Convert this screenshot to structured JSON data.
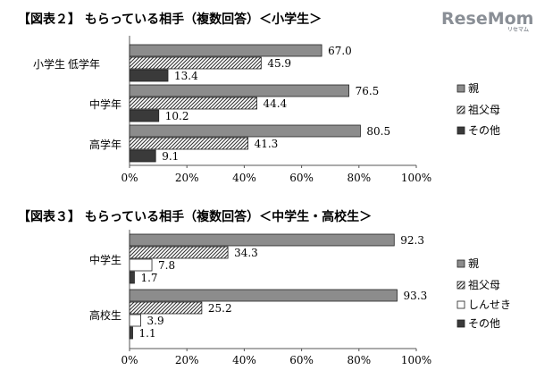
{
  "logo": {
    "text": "ReseMom",
    "sub": "リセマム"
  },
  "colors": {
    "parents": "#8c8c8c",
    "grandparents_pattern": "#4a4a4a",
    "relatives": "#ffffff",
    "other": "#3a3a3a",
    "stroke": "#222222",
    "axis": "#666666",
    "logo": "#8a8f96"
  },
  "chart_data": [
    {
      "type": "bar",
      "orientation": "horizontal",
      "title": "【図表２】 もらっている相手（複数回答）＜小学生＞",
      "group_super_label": "小学生",
      "categories": [
        "低学年",
        "中学年",
        "高学年"
      ],
      "xlim": [
        0,
        100
      ],
      "ticks": [
        "0%",
        "20%",
        "40%",
        "60%",
        "80%",
        "100%"
      ],
      "legend_position": "right",
      "series": [
        {
          "name": "親",
          "key": "parents",
          "pattern": "gray",
          "values": [
            67.0,
            76.5,
            80.5
          ],
          "labels": [
            "67.0",
            "76.5",
            "80.5"
          ]
        },
        {
          "name": "祖父母",
          "key": "grandparents",
          "pattern": "hatch",
          "values": [
            45.9,
            44.4,
            41.3
          ],
          "labels": [
            "45.9",
            "44.4",
            "41.3"
          ]
        },
        {
          "name": "その他",
          "key": "other",
          "pattern": "dark",
          "values": [
            13.4,
            10.2,
            9.1
          ],
          "labels": [
            "13.4",
            "10.2",
            "9.1"
          ]
        }
      ]
    },
    {
      "type": "bar",
      "orientation": "horizontal",
      "title": "【図表３】 もらっている相手（複数回答）＜中学生・高校生＞",
      "group_super_label": "",
      "categories": [
        "中学生",
        "高校生"
      ],
      "xlim": [
        0,
        100
      ],
      "ticks": [
        "0%",
        "20%",
        "40%",
        "60%",
        "80%",
        "100%"
      ],
      "legend_position": "right",
      "series": [
        {
          "name": "親",
          "key": "parents",
          "pattern": "gray",
          "values": [
            92.3,
            93.3
          ],
          "labels": [
            "92.3",
            "93.3"
          ]
        },
        {
          "name": "祖父母",
          "key": "grandparents",
          "pattern": "hatch",
          "values": [
            34.3,
            25.2
          ],
          "labels": [
            "34.3",
            "25.2"
          ]
        },
        {
          "name": "しんせき",
          "key": "relatives",
          "pattern": "white",
          "values": [
            7.8,
            3.9
          ],
          "labels": [
            "7.8",
            "3.9"
          ]
        },
        {
          "name": "その他",
          "key": "other",
          "pattern": "dark",
          "values": [
            1.7,
            1.1
          ],
          "labels": [
            "1.7",
            "1.1"
          ]
        }
      ]
    }
  ]
}
